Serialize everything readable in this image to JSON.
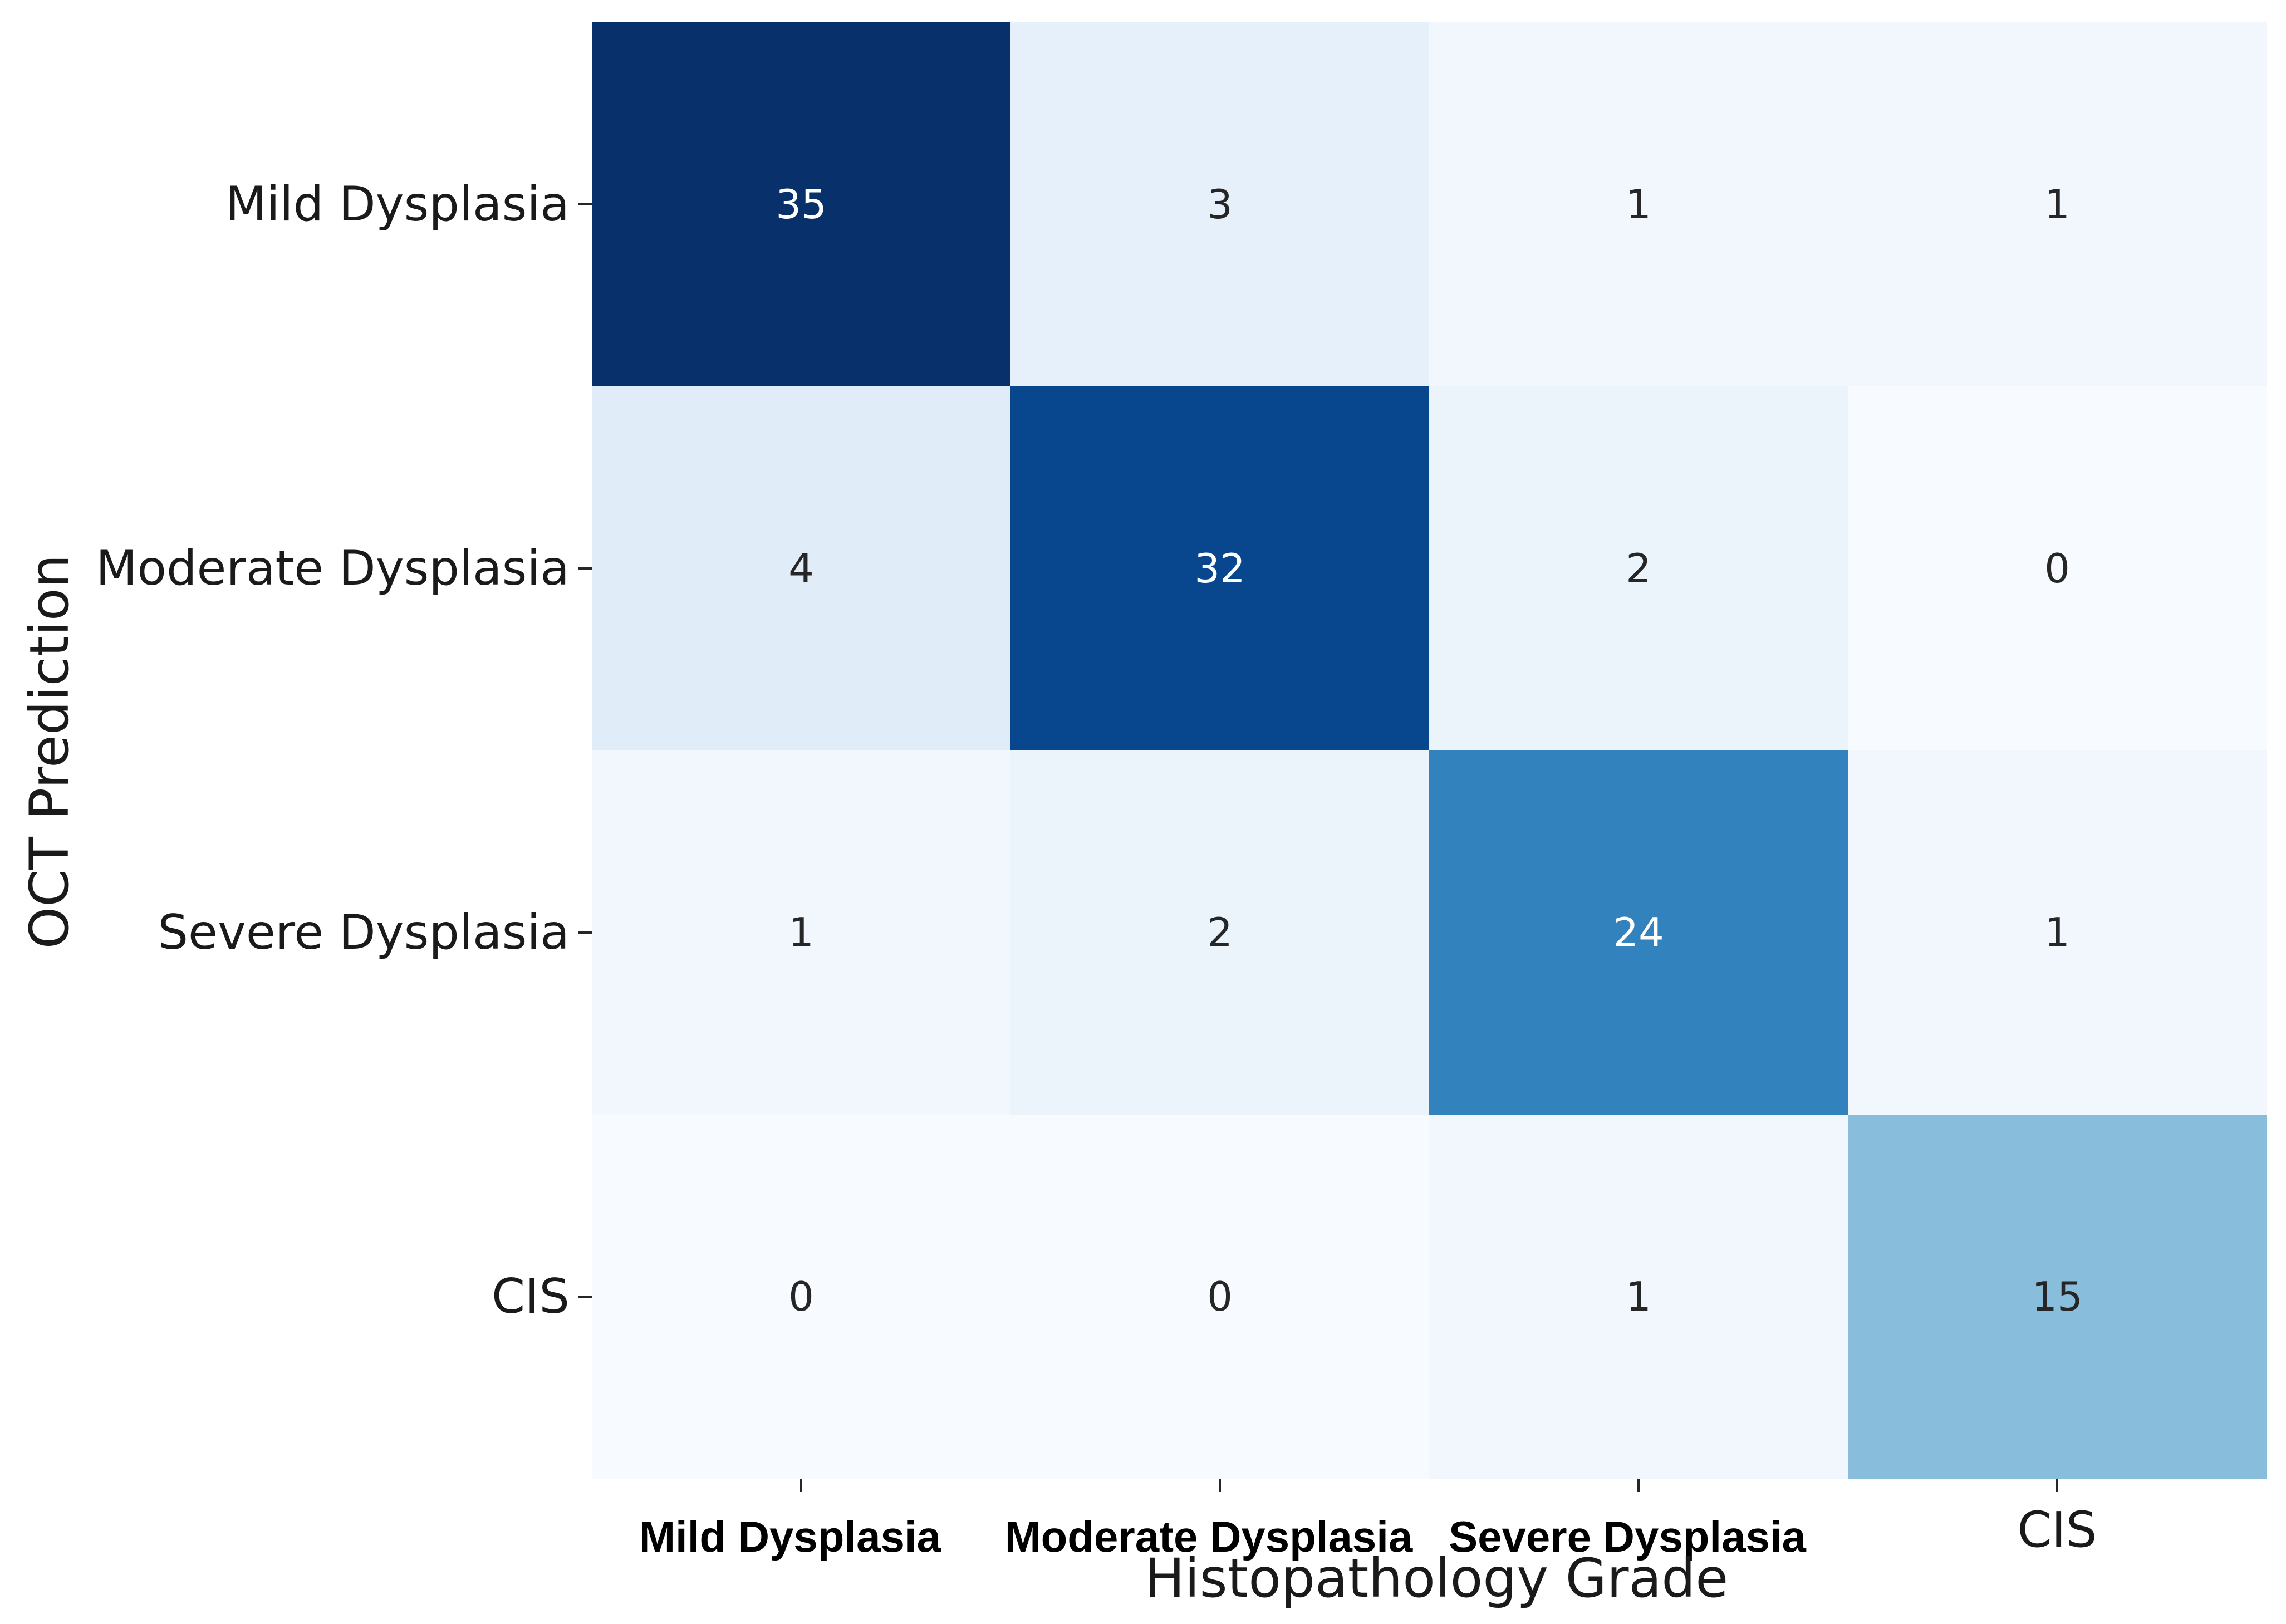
{
  "chart_data": {
    "type": "heatmap",
    "title": "",
    "xlabel": "Histopathology Grade",
    "ylabel": "OCT Prediction",
    "x_categories": [
      "Mild Dysplasia",
      "Moderate Dysplasia",
      "Severe Dysplasia",
      "CIS"
    ],
    "y_categories": [
      "Mild Dysplasia",
      "Moderate Dysplasia",
      "Severe Dysplasia",
      "CIS"
    ],
    "values": [
      [
        35,
        3,
        1,
        1
      ],
      [
        4,
        32,
        2,
        0
      ],
      [
        1,
        2,
        24,
        1
      ],
      [
        0,
        0,
        1,
        15
      ]
    ],
    "colormap": "Blues",
    "value_range": [
      0,
      35
    ],
    "colorbar": false,
    "colors": {
      "light_text": "#ffffff",
      "dark_text": "#262626"
    }
  }
}
